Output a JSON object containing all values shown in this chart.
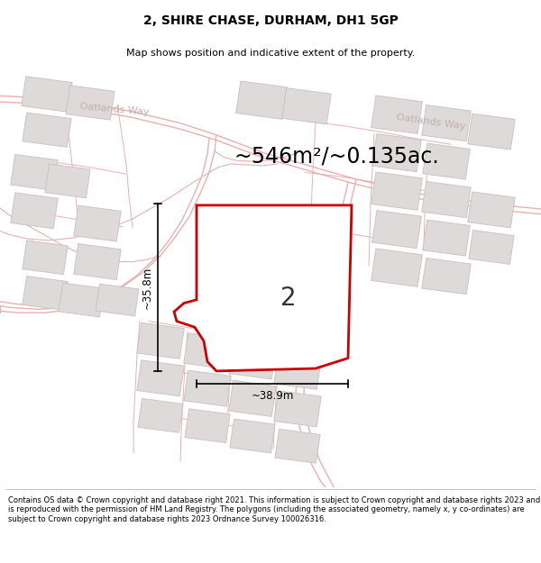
{
  "title": "2, SHIRE CHASE, DURHAM, DH1 5GP",
  "subtitle": "Map shows position and indicative extent of the property.",
  "area_label": "~546m²/~0.135ac.",
  "width_label": "~38.9m",
  "height_label": "~35.8m",
  "plot_number": "2",
  "footer": "Contains OS data © Crown copyright and database right 2021. This information is subject to Crown copyright and database rights 2023 and is reproduced with the permission of HM Land Registry. The polygons (including the associated geometry, namely x, y co-ordinates) are subject to Crown copyright and database rights 2023 Ordnance Survey 100026316.",
  "bg_color": "#f7f4f4",
  "road_line_color": "#e8b0b0",
  "building_face_color": "#dedada",
  "building_edge_color": "#c8c0c0",
  "plot_fill": "#ffffff",
  "plot_edge": "#cc0000",
  "street_label_color": "#c0b0b0",
  "title_color": "#000000",
  "dim_color": "#000000",
  "title_fontsize": 10,
  "subtitle_fontsize": 8,
  "area_fontsize": 17,
  "dim_fontsize": 8.5,
  "street_fontsize": 8,
  "footer_fontsize": 6.0
}
